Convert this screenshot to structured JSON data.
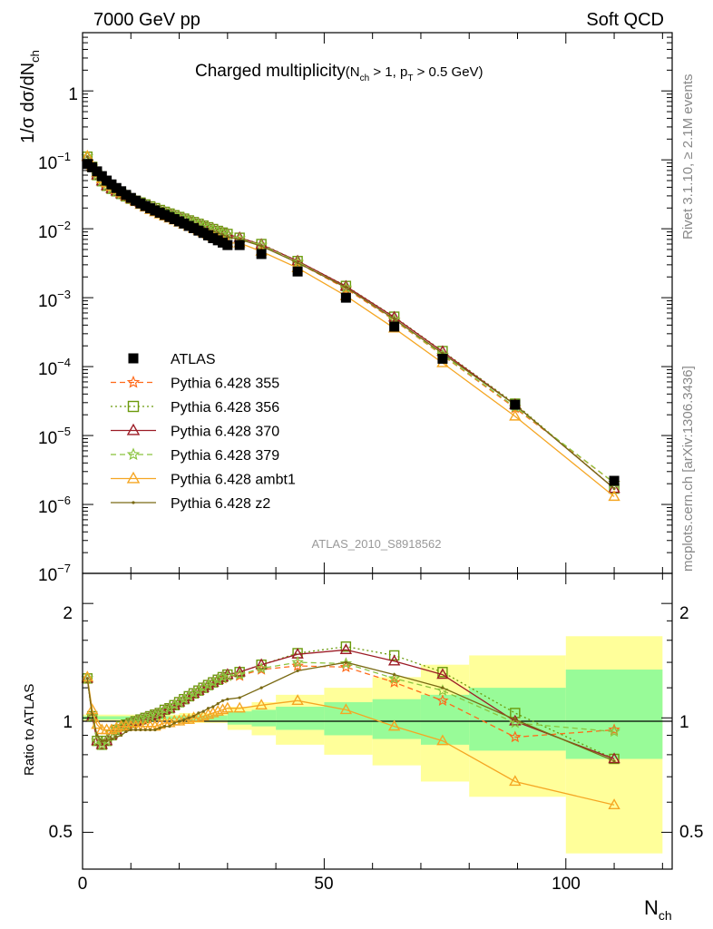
{
  "header": {
    "left": "7000 GeV pp",
    "right": "Soft QCD",
    "title_main": "Charged multiplicity",
    "title_paren_open": "(N",
    "title_sub1": "ch",
    "title_mid": " > 1, p",
    "title_sub2": "T",
    "title_end": " > 0.5 GeV)",
    "side_top": "Rivet 3.1.10, ≥ 2.1M events",
    "side_bottom": "mcplots.cern.ch [arXiv:1306.3436]",
    "analysis": "ATLAS_2010_S8918562"
  },
  "axes": {
    "main_ylabel": "1/σ dσ/dN",
    "main_ylabel_sub": "ch",
    "ratio_ylabel": "Ratio to ATLAS",
    "xlabel": "N",
    "xlabel_sub": "ch",
    "x_ticks": [
      "0",
      "50",
      "100"
    ],
    "ratio_ticks": [
      "0.5",
      "1",
      "2"
    ],
    "main_ticks": [
      {
        "base": "1",
        "exp": ""
      },
      {
        "base": "10",
        "exp": "−1"
      },
      {
        "base": "10",
        "exp": "−2"
      },
      {
        "base": "10",
        "exp": "−3"
      },
      {
        "base": "10",
        "exp": "−4"
      },
      {
        "base": "10",
        "exp": "−5"
      },
      {
        "base": "10",
        "exp": "−6"
      },
      {
        "base": "10",
        "exp": "−7"
      }
    ]
  },
  "legend": [
    {
      "label": "ATLAS"
    },
    {
      "label": "Pythia 6.428 355"
    },
    {
      "label": "Pythia 6.428 356"
    },
    {
      "label": "Pythia 6.428 370"
    },
    {
      "label": "Pythia 6.428 379"
    },
    {
      "label": "Pythia 6.428 ambt1"
    },
    {
      "label": "Pythia 6.428 z2"
    }
  ],
  "chart_data": {
    "type": "line",
    "main": {
      "xlim": [
        0,
        122
      ],
      "ylim": [
        1e-07,
        7
      ],
      "log_y": true,
      "x": [
        1,
        2,
        3,
        4,
        5,
        6,
        7,
        8,
        9,
        10,
        11,
        12,
        13,
        14,
        15,
        16,
        17,
        18,
        19,
        20,
        21,
        22,
        23,
        24,
        25,
        26,
        27,
        28,
        29,
        30,
        32.5,
        37,
        44.5,
        54.5,
        64.5,
        74.5,
        89.5,
        110
      ],
      "series": [
        {
          "name": "ATLAS",
          "color": "#000000",
          "marker": "square",
          "line": "none",
          "values": [
            0.087,
            0.078,
            0.068,
            0.058,
            0.05,
            0.044,
            0.039,
            0.035,
            0.031,
            0.028,
            0.0255,
            0.0233,
            0.0214,
            0.0198,
            0.0184,
            0.0171,
            0.0159,
            0.0148,
            0.0138,
            0.0128,
            0.0119,
            0.011,
            0.0102,
            0.0094,
            0.0087,
            0.008,
            0.0073,
            0.0068,
            0.0063,
            0.0058,
            0.0058,
            0.0043,
            0.0024,
            0.001,
            0.00038,
            0.00013,
            2.8e-05,
            2.2e-06
          ]
        },
        {
          "name": "Pythia 6.428 355",
          "color": "#ff6a1a",
          "marker": "star",
          "line": "dashed",
          "values": [
            0.111,
            0.079,
            0.06,
            0.049,
            0.042,
            0.038,
            0.035,
            0.032,
            0.0295,
            0.0273,
            0.0255,
            0.024,
            0.0225,
            0.0211,
            0.0199,
            0.0187,
            0.0176,
            0.0166,
            0.0157,
            0.0148,
            0.014,
            0.0132,
            0.0125,
            0.0118,
            0.0111,
            0.0105,
            0.0099,
            0.0093,
            0.0088,
            0.0083,
            0.0072,
            0.0058,
            0.0032,
            0.00135,
            0.00047,
            0.000145,
            2.5e-05,
            2.05e-06
          ]
        },
        {
          "name": "Pythia 6.428 356",
          "color": "#6b9a0c",
          "marker": "open-square",
          "line": "dotted",
          "values": [
            0.111,
            0.079,
            0.06,
            0.049,
            0.042,
            0.038,
            0.035,
            0.032,
            0.0295,
            0.0273,
            0.0255,
            0.024,
            0.0225,
            0.0211,
            0.0199,
            0.0187,
            0.0176,
            0.0166,
            0.0157,
            0.0148,
            0.014,
            0.0132,
            0.0125,
            0.0118,
            0.0111,
            0.0105,
            0.0099,
            0.0093,
            0.0088,
            0.0084,
            0.0074,
            0.006,
            0.0034,
            0.00148,
            0.00053,
            0.000168,
            2.9e-05,
            1.7e-06
          ]
        },
        {
          "name": "Pythia 6.428 370",
          "color": "#9c1c26",
          "marker": "open-triangle",
          "line": "solid",
          "values": [
            0.111,
            0.079,
            0.06,
            0.049,
            0.042,
            0.038,
            0.035,
            0.032,
            0.0295,
            0.0273,
            0.0255,
            0.024,
            0.0225,
            0.0211,
            0.0199,
            0.0187,
            0.0176,
            0.0166,
            0.0157,
            0.0148,
            0.014,
            0.0132,
            0.0125,
            0.0118,
            0.0111,
            0.0105,
            0.0099,
            0.0093,
            0.0088,
            0.0083,
            0.0074,
            0.0059,
            0.0034,
            0.00146,
            0.00052,
            0.000165,
            2.8e-05,
            1.7e-06
          ]
        },
        {
          "name": "Pythia 6.428 379",
          "color": "#8bc43f",
          "marker": "star",
          "line": "dashed",
          "values": [
            0.111,
            0.079,
            0.06,
            0.049,
            0.042,
            0.038,
            0.035,
            0.032,
            0.0295,
            0.0273,
            0.0255,
            0.024,
            0.0225,
            0.0211,
            0.0199,
            0.0187,
            0.0176,
            0.0166,
            0.0157,
            0.0148,
            0.014,
            0.0132,
            0.0125,
            0.0118,
            0.0111,
            0.0105,
            0.0099,
            0.0093,
            0.0088,
            0.0083,
            0.0072,
            0.0058,
            0.0033,
            0.0014,
            0.00048,
            0.000148,
            2.6e-05,
            2.05e-06
          ]
        },
        {
          "name": "Pythia 6.428 ambt1",
          "color": "#f5a623",
          "marker": "open-triangle",
          "line": "solid",
          "values": [
            0.113,
            0.082,
            0.065,
            0.053,
            0.046,
            0.041,
            0.037,
            0.033,
            0.03,
            0.027,
            0.0246,
            0.0224,
            0.0205,
            0.0189,
            0.0175,
            0.0163,
            0.0152,
            0.0142,
            0.0133,
            0.0124,
            0.0116,
            0.0108,
            0.0101,
            0.0095,
            0.0089,
            0.0083,
            0.0077,
            0.0072,
            0.0067,
            0.0062,
            0.0062,
            0.0047,
            0.0027,
            0.00106,
            0.00036,
            0.000113,
            1.9e-05,
            1.3e-06
          ]
        },
        {
          "name": "Pythia 6.428 z2",
          "color": "#7a6a14",
          "marker": "dot",
          "line": "solid",
          "values": [
            0.111,
            0.079,
            0.061,
            0.05,
            0.043,
            0.038,
            0.035,
            0.032,
            0.0292,
            0.0268,
            0.0248,
            0.0232,
            0.0217,
            0.0203,
            0.0191,
            0.0179,
            0.0168,
            0.0158,
            0.0149,
            0.014,
            0.0132,
            0.0124,
            0.0117,
            0.011,
            0.0104,
            0.0098,
            0.0092,
            0.0087,
            0.0082,
            0.0077,
            0.007,
            0.0056,
            0.0032,
            0.0014,
            0.00049,
            0.000155,
            2.8e-05,
            1.7e-06
          ]
        }
      ]
    },
    "ratio": {
      "xlim": [
        0,
        122
      ],
      "ylim": [
        0.4,
        2.4
      ],
      "log_y": true,
      "reference": 1,
      "x": [
        1,
        2,
        3,
        4,
        5,
        6,
        7,
        8,
        9,
        10,
        11,
        12,
        13,
        14,
        15,
        16,
        17,
        18,
        19,
        20,
        21,
        22,
        23,
        24,
        25,
        26,
        27,
        28,
        29,
        30,
        32.5,
        37,
        44.5,
        54.5,
        64.5,
        74.5,
        89.5,
        110
      ],
      "bands": {
        "bin_edges": [
          0,
          10,
          20,
          30,
          35,
          40,
          50,
          60,
          70,
          80,
          100,
          120
        ],
        "stat_lo": [
          0.99,
          0.99,
          0.985,
          0.96,
          0.95,
          0.93,
          0.9,
          0.88,
          0.85,
          0.82,
          0.78
        ],
        "stat_hi": [
          1.01,
          1.01,
          1.015,
          1.04,
          1.05,
          1.07,
          1.1,
          1.12,
          1.15,
          1.2,
          1.34
        ],
        "total_lo": [
          0.98,
          0.98,
          0.97,
          0.93,
          0.9,
          0.85,
          0.8,
          0.75,
          0.68,
          0.62,
          0.44
        ],
        "total_hi": [
          1.02,
          1.02,
          1.03,
          1.07,
          1.1,
          1.15,
          1.2,
          1.28,
          1.38,
          1.46,
          1.64
        ],
        "stat_color": "#98fb98",
        "total_color": "#ffff9a"
      },
      "series": [
        {
          "name": "Pythia 6.428 355",
          "color": "#ff6a1a",
          "marker": "star",
          "line": "dashed",
          "values": [
            1.27,
            1.01,
            0.87,
            0.85,
            0.87,
            0.9,
            0.93,
            0.95,
            0.96,
            0.97,
            0.98,
            0.99,
            1.0,
            1.01,
            1.02,
            1.03,
            1.05,
            1.06,
            1.08,
            1.1,
            1.12,
            1.14,
            1.16,
            1.18,
            1.2,
            1.22,
            1.24,
            1.26,
            1.27,
            1.29,
            1.29,
            1.34,
            1.37,
            1.36,
            1.24,
            1.11,
            0.89,
            0.93
          ]
        },
        {
          "name": "Pythia 6.428 356",
          "color": "#6b9a0c",
          "marker": "open-square",
          "line": "dotted",
          "values": [
            1.27,
            1.01,
            0.87,
            0.85,
            0.87,
            0.9,
            0.93,
            0.95,
            0.96,
            0.97,
            0.98,
            0.99,
            1.0,
            1.01,
            1.02,
            1.03,
            1.05,
            1.06,
            1.08,
            1.1,
            1.12,
            1.14,
            1.16,
            1.18,
            1.2,
            1.22,
            1.24,
            1.26,
            1.28,
            1.3,
            1.32,
            1.38,
            1.48,
            1.54,
            1.46,
            1.32,
            1.03,
            0.78
          ]
        },
        {
          "name": "Pythia 6.428 370",
          "color": "#9c1c26",
          "marker": "open-triangle",
          "line": "solid",
          "values": [
            1.27,
            1.01,
            0.87,
            0.85,
            0.87,
            0.9,
            0.93,
            0.95,
            0.96,
            0.97,
            0.98,
            0.99,
            1.0,
            1.01,
            1.02,
            1.03,
            1.05,
            1.06,
            1.08,
            1.1,
            1.12,
            1.14,
            1.16,
            1.18,
            1.2,
            1.22,
            1.24,
            1.26,
            1.28,
            1.3,
            1.32,
            1.38,
            1.47,
            1.51,
            1.41,
            1.3,
            0.98,
            0.78
          ]
        },
        {
          "name": "Pythia 6.428 379",
          "color": "#8bc43f",
          "marker": "star",
          "line": "dashed",
          "values": [
            1.27,
            1.01,
            0.87,
            0.85,
            0.87,
            0.9,
            0.93,
            0.95,
            0.96,
            0.97,
            0.98,
            0.99,
            1.0,
            1.01,
            1.02,
            1.03,
            1.05,
            1.06,
            1.08,
            1.1,
            1.12,
            1.14,
            1.16,
            1.18,
            1.2,
            1.22,
            1.24,
            1.26,
            1.28,
            1.29,
            1.3,
            1.35,
            1.4,
            1.39,
            1.27,
            1.18,
            0.97,
            0.92
          ]
        },
        {
          "name": "Pythia 6.428 ambt1",
          "color": "#f5a623",
          "marker": "open-triangle",
          "line": "solid",
          "values": [
            1.28,
            1.05,
            0.96,
            0.93,
            0.93,
            0.93,
            0.94,
            0.95,
            0.95,
            0.95,
            0.95,
            0.95,
            0.95,
            0.95,
            0.95,
            0.96,
            0.97,
            0.97,
            0.98,
            0.98,
            0.99,
            0.99,
            1.0,
            1.0,
            1.01,
            1.02,
            1.03,
            1.04,
            1.05,
            1.06,
            1.06,
            1.08,
            1.11,
            1.05,
            0.95,
            0.87,
            0.68,
            0.59
          ]
        },
        {
          "name": "Pythia 6.428 z2",
          "color": "#7a6a14",
          "marker": "dot",
          "line": "solid",
          "values": [
            1.27,
            1.02,
            0.9,
            0.87,
            0.87,
            0.88,
            0.89,
            0.9,
            0.92,
            0.93,
            0.93,
            0.93,
            0.93,
            0.93,
            0.93,
            0.94,
            0.95,
            0.95,
            0.97,
            0.98,
            0.99,
            1.0,
            1.01,
            1.03,
            1.04,
            1.06,
            1.07,
            1.09,
            1.11,
            1.12,
            1.13,
            1.2,
            1.33,
            1.4,
            1.3,
            1.2,
            0.99,
            0.77
          ]
        }
      ]
    }
  }
}
